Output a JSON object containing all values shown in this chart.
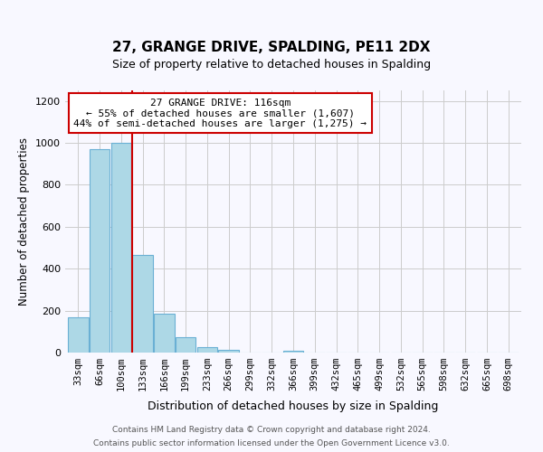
{
  "title": "27, GRANGE DRIVE, SPALDING, PE11 2DX",
  "subtitle": "Size of property relative to detached houses in Spalding",
  "xlabel": "Distribution of detached houses by size in Spalding",
  "ylabel": "Number of detached properties",
  "bins": [
    "33sqm",
    "66sqm",
    "100sqm",
    "133sqm",
    "166sqm",
    "199sqm",
    "233sqm",
    "266sqm",
    "299sqm",
    "332sqm",
    "366sqm",
    "399sqm",
    "432sqm",
    "465sqm",
    "499sqm",
    "532sqm",
    "565sqm",
    "598sqm",
    "632sqm",
    "665sqm",
    "698sqm"
  ],
  "values": [
    170,
    970,
    1000,
    465,
    185,
    75,
    25,
    15,
    0,
    0,
    10,
    0,
    0,
    0,
    0,
    0,
    0,
    0,
    0,
    0,
    0
  ],
  "bar_color": "#add8e6",
  "bar_edge_color": "#6ab0d4",
  "vline_color": "#cc0000",
  "annotation_text": "27 GRANGE DRIVE: 116sqm\n← 55% of detached houses are smaller (1,607)\n44% of semi-detached houses are larger (1,275) →",
  "annotation_box_edgecolor": "#cc0000",
  "annotation_box_facecolor": "#ffffff",
  "ylim": [
    0,
    1250
  ],
  "yticks": [
    0,
    200,
    400,
    600,
    800,
    1000,
    1200
  ],
  "footer1": "Contains HM Land Registry data © Crown copyright and database right 2024.",
  "footer2": "Contains public sector information licensed under the Open Government Licence v3.0.",
  "bg_color": "#f8f8ff"
}
